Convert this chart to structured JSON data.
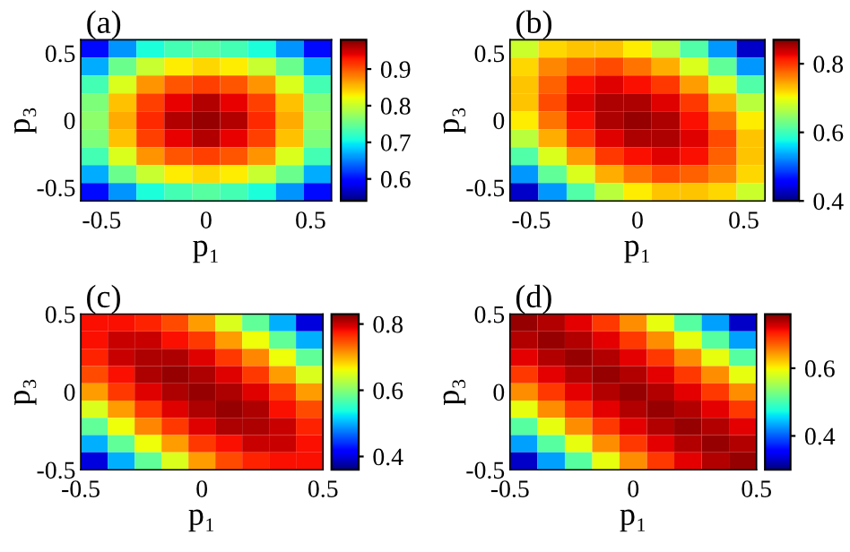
{
  "chart_data": [
    {
      "type": "heatmap",
      "title": "(a)",
      "xlabel": "p₁",
      "ylabel": "p₃",
      "xlim": [
        -0.6,
        0.6
      ],
      "ylim": [
        -0.6,
        0.6
      ],
      "xticks": [
        -0.5,
        0,
        0.5
      ],
      "yticks": [
        -0.5,
        0,
        0.5
      ],
      "clim": [
        0.54,
        0.98
      ],
      "cticks": [
        0.6,
        0.7,
        0.8,
        0.9
      ],
      "x": [
        -0.533,
        -0.4,
        -0.267,
        -0.133,
        0,
        0.133,
        0.267,
        0.4,
        0.533
      ],
      "y": [
        0.533,
        0.4,
        0.267,
        0.133,
        0,
        -0.133,
        -0.267,
        -0.4,
        -0.533
      ],
      "cells": [
        [
          0.6,
          0.66,
          0.71,
          0.73,
          0.74,
          0.73,
          0.71,
          0.66,
          0.6
        ],
        [
          0.67,
          0.75,
          0.8,
          0.83,
          0.84,
          0.83,
          0.8,
          0.75,
          0.67
        ],
        [
          0.73,
          0.81,
          0.87,
          0.9,
          0.91,
          0.9,
          0.87,
          0.81,
          0.73
        ],
        [
          0.76,
          0.85,
          0.91,
          0.94,
          0.96,
          0.94,
          0.91,
          0.85,
          0.76
        ],
        [
          0.77,
          0.86,
          0.92,
          0.96,
          0.97,
          0.96,
          0.92,
          0.86,
          0.77
        ],
        [
          0.76,
          0.85,
          0.91,
          0.94,
          0.96,
          0.94,
          0.91,
          0.85,
          0.76
        ],
        [
          0.73,
          0.81,
          0.87,
          0.9,
          0.91,
          0.9,
          0.87,
          0.81,
          0.73
        ],
        [
          0.67,
          0.75,
          0.8,
          0.83,
          0.84,
          0.83,
          0.8,
          0.75,
          0.67
        ],
        [
          0.6,
          0.66,
          0.71,
          0.73,
          0.74,
          0.73,
          0.71,
          0.66,
          0.6
        ]
      ]
    },
    {
      "type": "heatmap",
      "title": "(b)",
      "xlabel": "p₁",
      "ylabel": "p₃",
      "xlim": [
        -0.6,
        0.6
      ],
      "ylim": [
        -0.6,
        0.6
      ],
      "xticks": [
        -0.5,
        0,
        0.5
      ],
      "yticks": [
        -0.5,
        0,
        0.5
      ],
      "clim": [
        0.4,
        0.87
      ],
      "cticks": [
        0.4,
        0.6,
        0.8
      ],
      "x": [
        -0.533,
        -0.4,
        -0.267,
        -0.133,
        0,
        0.133,
        0.267,
        0.4,
        0.533
      ],
      "y": [
        0.533,
        0.4,
        0.267,
        0.133,
        0,
        -0.133,
        -0.267,
        -0.4,
        -0.533
      ],
      "cells": [
        [
          0.68,
          0.72,
          0.73,
          0.73,
          0.71,
          0.67,
          0.61,
          0.53,
          0.43
        ],
        [
          0.72,
          0.76,
          0.78,
          0.79,
          0.77,
          0.74,
          0.69,
          0.62,
          0.53
        ],
        [
          0.73,
          0.78,
          0.82,
          0.83,
          0.82,
          0.8,
          0.75,
          0.69,
          0.61
        ],
        [
          0.73,
          0.79,
          0.83,
          0.85,
          0.85,
          0.83,
          0.8,
          0.74,
          0.67
        ],
        [
          0.71,
          0.77,
          0.82,
          0.85,
          0.86,
          0.85,
          0.82,
          0.77,
          0.71
        ],
        [
          0.67,
          0.74,
          0.8,
          0.83,
          0.85,
          0.85,
          0.83,
          0.79,
          0.73
        ],
        [
          0.61,
          0.69,
          0.75,
          0.8,
          0.82,
          0.83,
          0.82,
          0.78,
          0.73
        ],
        [
          0.53,
          0.62,
          0.69,
          0.74,
          0.77,
          0.79,
          0.78,
          0.76,
          0.72
        ],
        [
          0.43,
          0.53,
          0.61,
          0.67,
          0.71,
          0.73,
          0.73,
          0.72,
          0.68
        ]
      ]
    },
    {
      "type": "heatmap",
      "title": "(c)",
      "xlabel": "p₁",
      "ylabel": "p₃",
      "xlim": [
        -0.5,
        0.5
      ],
      "ylim": [
        -0.5,
        0.5
      ],
      "xticks": [
        -0.5,
        0,
        0.5
      ],
      "yticks": [
        -0.5,
        0,
        0.5
      ],
      "clim": [
        0.36,
        0.83
      ],
      "cticks": [
        0.4,
        0.6,
        0.8
      ],
      "x": [
        -0.444,
        -0.333,
        -0.222,
        -0.111,
        0,
        0.111,
        0.222,
        0.333,
        0.444
      ],
      "y": [
        0.444,
        0.333,
        0.222,
        0.111,
        0,
        -0.111,
        -0.222,
        -0.333,
        -0.444
      ],
      "cells": [
        [
          0.78,
          0.78,
          0.77,
          0.75,
          0.71,
          0.65,
          0.58,
          0.5,
          0.4
        ],
        [
          0.78,
          0.8,
          0.8,
          0.78,
          0.76,
          0.71,
          0.66,
          0.58,
          0.5
        ],
        [
          0.77,
          0.8,
          0.81,
          0.81,
          0.79,
          0.76,
          0.72,
          0.66,
          0.58
        ],
        [
          0.75,
          0.78,
          0.81,
          0.82,
          0.81,
          0.79,
          0.76,
          0.71,
          0.65
        ],
        [
          0.71,
          0.76,
          0.79,
          0.81,
          0.82,
          0.81,
          0.79,
          0.76,
          0.71
        ],
        [
          0.65,
          0.71,
          0.76,
          0.79,
          0.81,
          0.82,
          0.81,
          0.78,
          0.75
        ],
        [
          0.58,
          0.66,
          0.72,
          0.76,
          0.79,
          0.81,
          0.81,
          0.8,
          0.77
        ],
        [
          0.5,
          0.58,
          0.66,
          0.71,
          0.76,
          0.78,
          0.8,
          0.8,
          0.78
        ],
        [
          0.4,
          0.5,
          0.58,
          0.65,
          0.71,
          0.75,
          0.77,
          0.78,
          0.78
        ]
      ]
    },
    {
      "type": "heatmap",
      "title": "(d)",
      "xlabel": "p₁",
      "ylabel": "p₃",
      "xlim": [
        -0.5,
        0.5
      ],
      "ylim": [
        -0.5,
        0.5
      ],
      "xticks": [
        -0.5,
        0,
        0.5
      ],
      "yticks": [
        -0.5,
        0,
        0.5
      ],
      "clim": [
        0.3,
        0.76
      ],
      "cticks": [
        0.4,
        0.6
      ],
      "x": [
        -0.444,
        -0.333,
        -0.222,
        -0.111,
        0,
        0.111,
        0.222,
        0.333,
        0.444
      ],
      "y": [
        0.444,
        0.333,
        0.222,
        0.111,
        0,
        -0.111,
        -0.222,
        -0.333,
        -0.444
      ],
      "cells": [
        [
          0.75,
          0.74,
          0.72,
          0.69,
          0.65,
          0.59,
          0.51,
          0.43,
          0.33
        ],
        [
          0.74,
          0.75,
          0.74,
          0.72,
          0.69,
          0.65,
          0.59,
          0.51,
          0.43
        ],
        [
          0.72,
          0.74,
          0.75,
          0.74,
          0.72,
          0.69,
          0.65,
          0.59,
          0.51
        ],
        [
          0.69,
          0.72,
          0.74,
          0.75,
          0.74,
          0.72,
          0.69,
          0.65,
          0.59
        ],
        [
          0.65,
          0.69,
          0.72,
          0.74,
          0.75,
          0.74,
          0.72,
          0.69,
          0.65
        ],
        [
          0.59,
          0.65,
          0.69,
          0.72,
          0.74,
          0.75,
          0.74,
          0.72,
          0.69
        ],
        [
          0.51,
          0.59,
          0.65,
          0.69,
          0.72,
          0.74,
          0.75,
          0.74,
          0.72
        ],
        [
          0.43,
          0.51,
          0.59,
          0.65,
          0.69,
          0.72,
          0.74,
          0.75,
          0.74
        ],
        [
          0.33,
          0.43,
          0.51,
          0.59,
          0.65,
          0.69,
          0.72,
          0.74,
          0.75
        ]
      ]
    }
  ]
}
